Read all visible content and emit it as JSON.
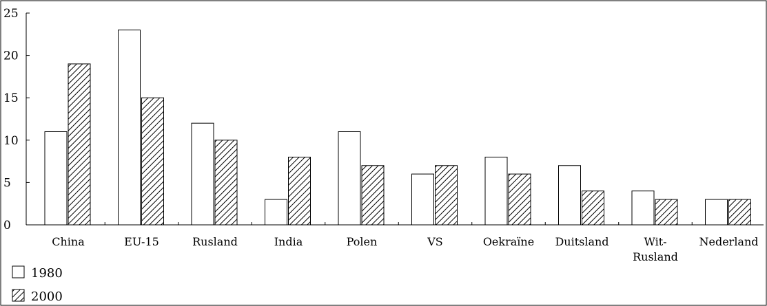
{
  "chart_data": {
    "type": "bar",
    "categories": [
      "China",
      "EU-15",
      "Rusland",
      "India",
      "Polen",
      "VS",
      "Oekraïne",
      "Duitsland",
      "Wit-Rusland",
      "Nederland"
    ],
    "category_lines": [
      [
        "China"
      ],
      [
        "EU-15"
      ],
      [
        "Rusland"
      ],
      [
        "India"
      ],
      [
        "Polen"
      ],
      [
        "VS"
      ],
      [
        "Oekraïne"
      ],
      [
        "Duitsland"
      ],
      [
        "Wit-",
        "Rusland"
      ],
      [
        "Nederland"
      ]
    ],
    "series": [
      {
        "name": "1980",
        "values": [
          11,
          23,
          12,
          3,
          11,
          6,
          8,
          7,
          4,
          3
        ],
        "fill": "#ffffff",
        "pattern": "none"
      },
      {
        "name": "2000",
        "values": [
          19,
          15,
          10,
          8,
          7,
          7,
          6,
          4,
          3,
          3
        ],
        "fill": "#ffffff",
        "pattern": "diagonal-hatch"
      }
    ],
    "ylim": [
      0,
      25
    ],
    "yticks": [
      0,
      5,
      10,
      15,
      20,
      25
    ],
    "title": "",
    "xlabel": "",
    "ylabel": "",
    "grid": false,
    "legend_position": "bottom-left"
  },
  "colors": {
    "stroke": "#000000",
    "background": "#ffffff"
  }
}
